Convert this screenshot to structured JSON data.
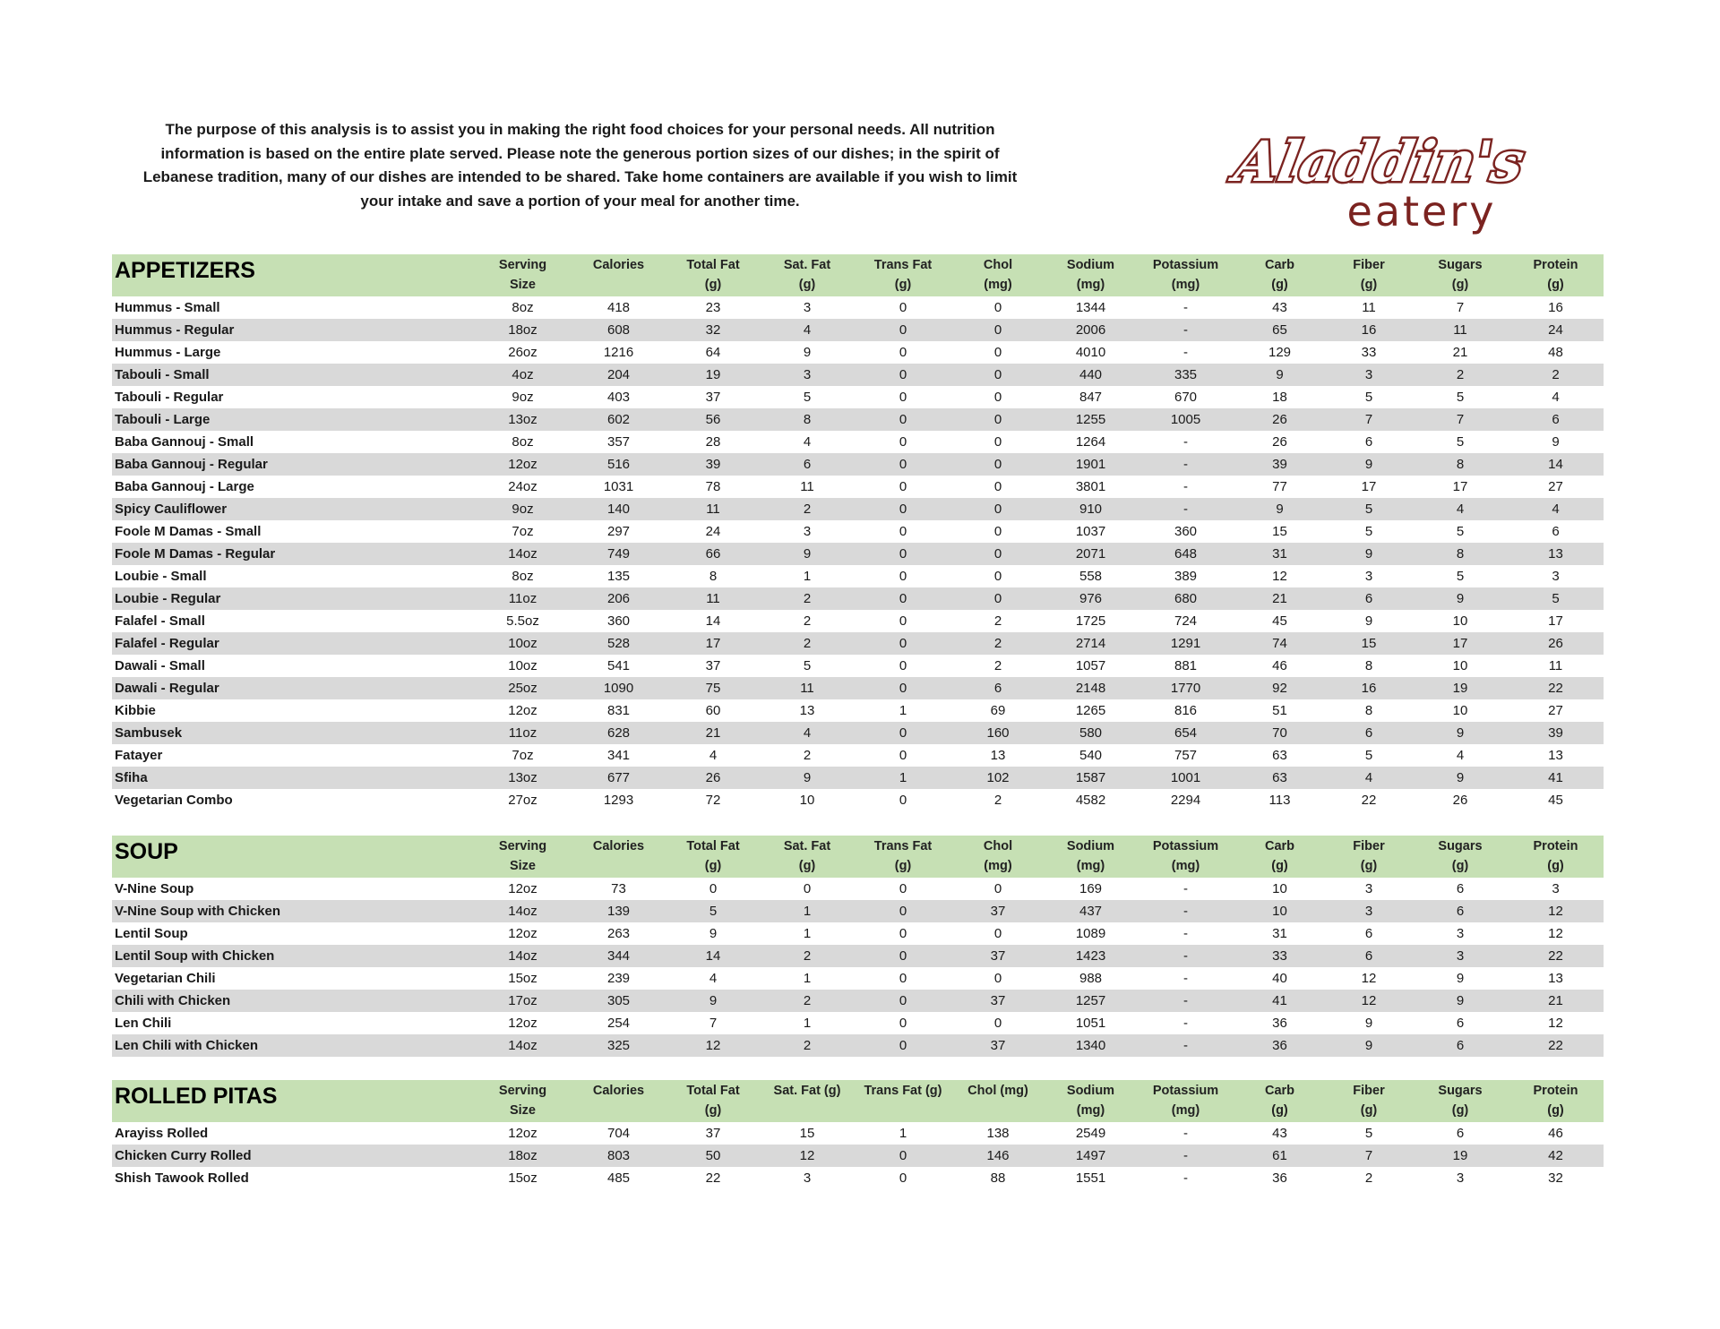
{
  "intro": {
    "lines": [
      "The purpose of this analysis is to assist you in making the right food choices for your personal needs. All nutrition",
      "information is based on the entire plate served. Please note the generous portion sizes of our dishes; in the spirit of",
      "Lebanese tradition, many of our dishes are intended to be shared. Take home containers are available if you wish to limit",
      "your intake and save a portion of your meal for another time."
    ]
  },
  "logo": {
    "script": "Aladdin's",
    "sub": "eatery",
    "color": "#7b2320"
  },
  "colors": {
    "header_bg": "#c6e0b4",
    "stripe": "#d9d9d9"
  },
  "sections": [
    {
      "title": "APPETIZERS",
      "columns": [
        [
          "Serving",
          "Size"
        ],
        [
          "Calories",
          ""
        ],
        [
          "Total Fat",
          "(g)"
        ],
        [
          "Sat. Fat",
          "(g)"
        ],
        [
          "Trans Fat",
          "(g)"
        ],
        [
          "Chol",
          "(mg)"
        ],
        [
          "Sodium",
          "(mg)"
        ],
        [
          "Potassium",
          "(mg)"
        ],
        [
          "Carb",
          "(g)"
        ],
        [
          "Fiber",
          "(g)"
        ],
        [
          "Sugars",
          "(g)"
        ],
        [
          "Protein",
          "(g)"
        ]
      ],
      "rows": [
        [
          "Hummus - Small",
          "8oz",
          "418",
          "23",
          "3",
          "0",
          "0",
          "1344",
          "-",
          "43",
          "11",
          "7",
          "16"
        ],
        [
          "Hummus - Regular",
          "18oz",
          "608",
          "32",
          "4",
          "0",
          "0",
          "2006",
          "-",
          "65",
          "16",
          "11",
          "24"
        ],
        [
          "Hummus - Large",
          "26oz",
          "1216",
          "64",
          "9",
          "0",
          "0",
          "4010",
          "-",
          "129",
          "33",
          "21",
          "48"
        ],
        [
          "Tabouli - Small",
          "4oz",
          "204",
          "19",
          "3",
          "0",
          "0",
          "440",
          "335",
          "9",
          "3",
          "2",
          "2"
        ],
        [
          "Tabouli - Regular",
          "9oz",
          "403",
          "37",
          "5",
          "0",
          "0",
          "847",
          "670",
          "18",
          "5",
          "5",
          "4"
        ],
        [
          "Tabouli - Large",
          "13oz",
          "602",
          "56",
          "8",
          "0",
          "0",
          "1255",
          "1005",
          "26",
          "7",
          "7",
          "6"
        ],
        [
          "Baba Gannouj - Small",
          "8oz",
          "357",
          "28",
          "4",
          "0",
          "0",
          "1264",
          "-",
          "26",
          "6",
          "5",
          "9"
        ],
        [
          "Baba Gannouj - Regular",
          "12oz",
          "516",
          "39",
          "6",
          "0",
          "0",
          "1901",
          "-",
          "39",
          "9",
          "8",
          "14"
        ],
        [
          "Baba Gannouj - Large",
          "24oz",
          "1031",
          "78",
          "11",
          "0",
          "0",
          "3801",
          "-",
          "77",
          "17",
          "17",
          "27"
        ],
        [
          "Spicy Cauliflower",
          "9oz",
          "140",
          "11",
          "2",
          "0",
          "0",
          "910",
          "-",
          "9",
          "5",
          "4",
          "4"
        ],
        [
          "Foole M Damas - Small",
          "7oz",
          "297",
          "24",
          "3",
          "0",
          "0",
          "1037",
          "360",
          "15",
          "5",
          "5",
          "6"
        ],
        [
          "Foole M Damas - Regular",
          "14oz",
          "749",
          "66",
          "9",
          "0",
          "0",
          "2071",
          "648",
          "31",
          "9",
          "8",
          "13"
        ],
        [
          "Loubie - Small",
          "8oz",
          "135",
          "8",
          "1",
          "0",
          "0",
          "558",
          "389",
          "12",
          "3",
          "5",
          "3"
        ],
        [
          "Loubie - Regular",
          "11oz",
          "206",
          "11",
          "2",
          "0",
          "0",
          "976",
          "680",
          "21",
          "6",
          "9",
          "5"
        ],
        [
          "Falafel - Small",
          "5.5oz",
          "360",
          "14",
          "2",
          "0",
          "2",
          "1725",
          "724",
          "45",
          "9",
          "10",
          "17"
        ],
        [
          "Falafel - Regular",
          "10oz",
          "528",
          "17",
          "2",
          "0",
          "2",
          "2714",
          "1291",
          "74",
          "15",
          "17",
          "26"
        ],
        [
          "Dawali - Small",
          "10oz",
          "541",
          "37",
          "5",
          "0",
          "2",
          "1057",
          "881",
          "46",
          "8",
          "10",
          "11"
        ],
        [
          "Dawali - Regular",
          "25oz",
          "1090",
          "75",
          "11",
          "0",
          "6",
          "2148",
          "1770",
          "92",
          "16",
          "19",
          "22"
        ],
        [
          "Kibbie",
          "12oz",
          "831",
          "60",
          "13",
          "1",
          "69",
          "1265",
          "816",
          "51",
          "8",
          "10",
          "27"
        ],
        [
          "Sambusek",
          "11oz",
          "628",
          "21",
          "4",
          "0",
          "160",
          "580",
          "654",
          "70",
          "6",
          "9",
          "39"
        ],
        [
          "Fatayer",
          "7oz",
          "341",
          "4",
          "2",
          "0",
          "13",
          "540",
          "757",
          "63",
          "5",
          "4",
          "13"
        ],
        [
          "Sfiha",
          "13oz",
          "677",
          "26",
          "9",
          "1",
          "102",
          "1587",
          "1001",
          "63",
          "4",
          "9",
          "41"
        ],
        [
          "Vegetarian Combo",
          "27oz",
          "1293",
          "72",
          "10",
          "0",
          "2",
          "4582",
          "2294",
          "113",
          "22",
          "26",
          "45"
        ]
      ]
    },
    {
      "title": "SOUP",
      "columns": [
        [
          "Serving",
          "Size"
        ],
        [
          "Calories",
          ""
        ],
        [
          "Total Fat",
          "(g)"
        ],
        [
          "Sat. Fat",
          "(g)"
        ],
        [
          "Trans Fat",
          "(g)"
        ],
        [
          "Chol",
          "(mg)"
        ],
        [
          "Sodium",
          "(mg)"
        ],
        [
          "Potassium",
          "(mg)"
        ],
        [
          "Carb",
          "(g)"
        ],
        [
          "Fiber",
          "(g)"
        ],
        [
          "Sugars",
          "(g)"
        ],
        [
          "Protein",
          "(g)"
        ]
      ],
      "rows": [
        [
          "V-Nine Soup",
          "12oz",
          "73",
          "0",
          "0",
          "0",
          "0",
          "169",
          "-",
          "10",
          "3",
          "6",
          "3"
        ],
        [
          "V-Nine Soup with Chicken",
          "14oz",
          "139",
          "5",
          "1",
          "0",
          "37",
          "437",
          "-",
          "10",
          "3",
          "6",
          "12"
        ],
        [
          "Lentil Soup",
          "12oz",
          "263",
          "9",
          "1",
          "0",
          "0",
          "1089",
          "-",
          "31",
          "6",
          "3",
          "12"
        ],
        [
          "Lentil Soup with Chicken",
          "14oz",
          "344",
          "14",
          "2",
          "0",
          "37",
          "1423",
          "-",
          "33",
          "6",
          "3",
          "22"
        ],
        [
          "Vegetarian Chili",
          "15oz",
          "239",
          "4",
          "1",
          "0",
          "0",
          "988",
          "-",
          "40",
          "12",
          "9",
          "13"
        ],
        [
          "Chili with Chicken",
          "17oz",
          "305",
          "9",
          "2",
          "0",
          "37",
          "1257",
          "-",
          "41",
          "12",
          "9",
          "21"
        ],
        [
          "Len Chili",
          "12oz",
          "254",
          "7",
          "1",
          "0",
          "0",
          "1051",
          "-",
          "36",
          "9",
          "6",
          "12"
        ],
        [
          "Len Chili with Chicken",
          "14oz",
          "325",
          "12",
          "2",
          "0",
          "37",
          "1340",
          "-",
          "36",
          "9",
          "6",
          "22"
        ]
      ]
    },
    {
      "title": "ROLLED PITAS",
      "columns": [
        [
          "Serving",
          "Size"
        ],
        [
          "Calories",
          ""
        ],
        [
          "Total Fat",
          "(g)"
        ],
        [
          "Sat. Fat (g)",
          ""
        ],
        [
          "Trans Fat (g)",
          ""
        ],
        [
          "Chol (mg)",
          ""
        ],
        [
          "Sodium",
          "(mg)"
        ],
        [
          "Potassium",
          "(mg)"
        ],
        [
          "Carb",
          "(g)"
        ],
        [
          "Fiber",
          "(g)"
        ],
        [
          "Sugars",
          "(g)"
        ],
        [
          "Protein",
          "(g)"
        ]
      ],
      "rows": [
        [
          "Arayiss Rolled",
          "12oz",
          "704",
          "37",
          "15",
          "1",
          "138",
          "2549",
          "-",
          "43",
          "5",
          "6",
          "46"
        ],
        [
          "Chicken Curry Rolled",
          "18oz",
          "803",
          "50",
          "12",
          "0",
          "146",
          "1497",
          "-",
          "61",
          "7",
          "19",
          "42"
        ],
        [
          "Shish Tawook Rolled",
          "15oz",
          "485",
          "22",
          "3",
          "0",
          "88",
          "1551",
          "-",
          "36",
          "2",
          "3",
          "32"
        ]
      ]
    }
  ]
}
